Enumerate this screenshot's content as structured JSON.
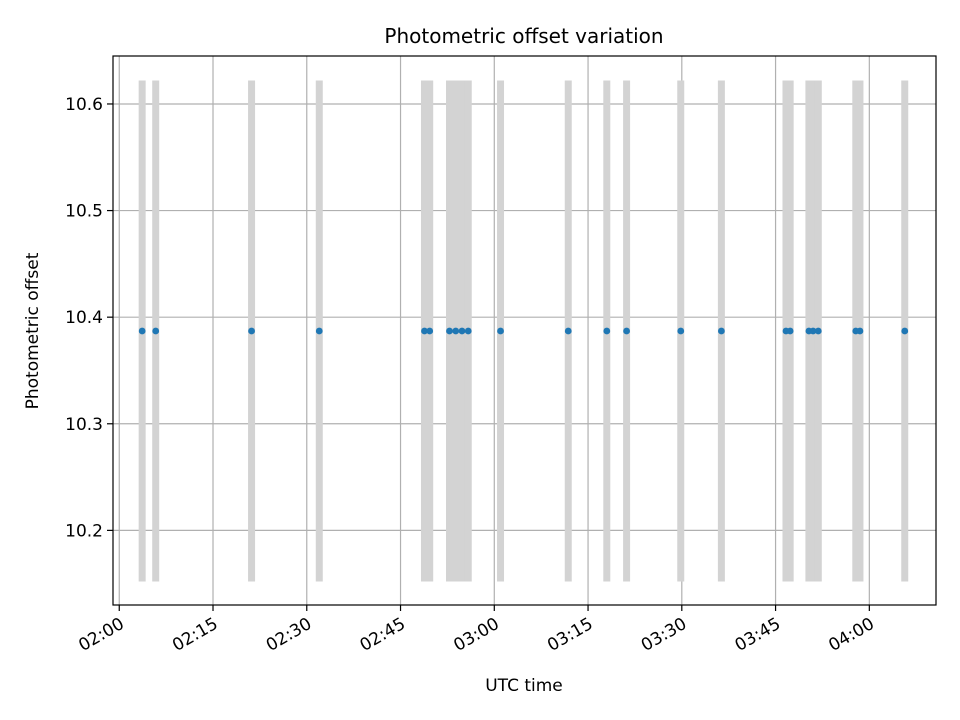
{
  "chart_data": {
    "type": "scatter",
    "title": "Photometric offset variation",
    "xlabel": "UTC time",
    "ylabel": "Photometric offset",
    "x_unit": "time of day (HH:MM, UTC)",
    "xlim": [
      "01:59:00",
      "04:10:40"
    ],
    "ylim": [
      10.13,
      10.645
    ],
    "x_ticks": [
      "02:00",
      "02:15",
      "02:30",
      "02:45",
      "03:00",
      "03:15",
      "03:30",
      "03:45",
      "04:00"
    ],
    "y_ticks": [
      "10.2",
      "10.3",
      "10.4",
      "10.5",
      "10.6"
    ],
    "y_tick_values": [
      10.2,
      10.3,
      10.4,
      10.5,
      10.6
    ],
    "grid": true,
    "legend": "none",
    "colors": {
      "points": "#1f77b4",
      "errorbars": "#d3d3d3",
      "grid": "#b0b0b0"
    },
    "series": [
      {
        "x": [
          "02:03:40",
          "02:05:50",
          "02:21:10",
          "02:32:00",
          "02:48:50",
          "02:49:40",
          "02:52:50",
          "02:53:50",
          "02:54:50",
          "02:55:50",
          "03:01:00",
          "03:11:50",
          "03:18:00",
          "03:21:10",
          "03:29:50",
          "03:36:20",
          "03:46:40",
          "03:47:20",
          "03:50:20",
          "03:51:00",
          "03:51:50",
          "03:57:50",
          "03:58:30",
          "04:05:40"
        ],
        "y": [
          10.387,
          10.387,
          10.387,
          10.387,
          10.387,
          10.387,
          10.387,
          10.387,
          10.387,
          10.387,
          10.387,
          10.387,
          10.387,
          10.387,
          10.387,
          10.387,
          10.387,
          10.387,
          10.387,
          10.387,
          10.387,
          10.387,
          10.387,
          10.387
        ],
        "yerr": [
          0.235,
          0.235,
          0.235,
          0.235,
          0.235,
          0.235,
          0.235,
          0.235,
          0.235,
          0.235,
          0.235,
          0.235,
          0.235,
          0.235,
          0.235,
          0.235,
          0.235,
          0.235,
          0.235,
          0.235,
          0.235,
          0.235,
          0.235,
          0.235
        ]
      }
    ]
  }
}
